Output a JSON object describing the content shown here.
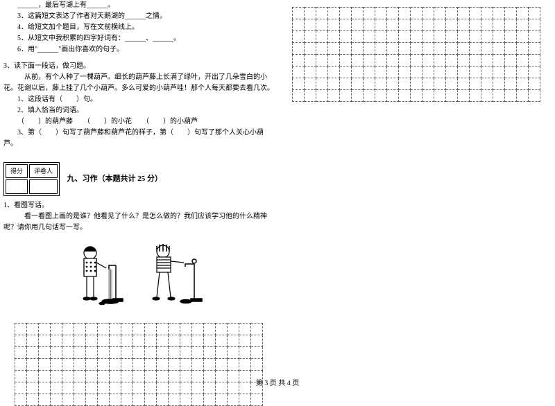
{
  "leftCol": {
    "prevLines": [
      "______，最后写湖上有______。",
      "3．这篇短文表达了作者对天鹅湖的______之情。",
      "4．给短文加个题目，写在文前横线上。",
      "5．从短文中我积累的四字好词有：______、______。",
      "6．用\"______\"画出你喜欢的句子。"
    ],
    "q3": {
      "title": "3、读下面一段话，做习题。",
      "passage1": "从前，有个人种了一棵葫芦。细长的葫芦藤上长满了绿叶，开出了几朵雪白的小花。花谢以后，藤上挂了几个小葫芦。多么可爱的小葫芦哇！那个人每天都要去看几次。",
      "sub1": "1、这段话有（　　）句。",
      "sub2": "2、填入恰当的词语。",
      "sub2a": "（　　）的葫芦藤　　（　　）的小花　　（　　）的小葫芦",
      "sub3": "3、第（　　）句写了葫芦藤和葫芦花的样子，第（　　）句写了那个人关心小葫芦。"
    },
    "score": {
      "h1": "得分",
      "h2": "评卷人"
    },
    "section9": {
      "title": "九、习作（本题共计 25 分）",
      "q1": "1、看图写话。",
      "q1body": "看一看图上画的是谁？他看见了什么？是怎么做的？我们应该学习他的什么精神呢？请你用几句话写一写。"
    }
  },
  "footer": "第 3 页 共 4 页",
  "gridLeft": {
    "rows": 7,
    "cols": 21
  },
  "gridRight": {
    "rows": 8,
    "cols": 21
  }
}
